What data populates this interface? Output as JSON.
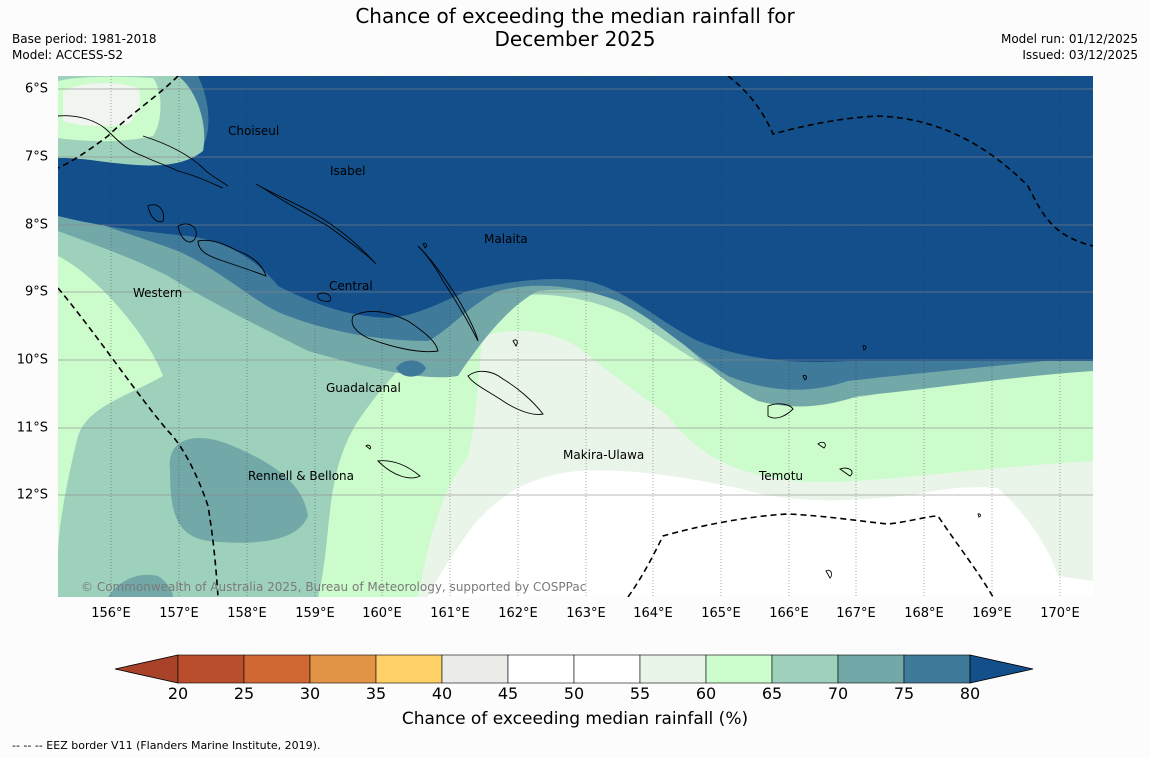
{
  "header": {
    "title_line1": "Chance of exceeding the median rainfall for",
    "title_line2": "December 2025",
    "base_period": "Base period: 1981-2018",
    "model": "Model: ACCESS-S2",
    "model_run": "Model run: 01/12/2025",
    "issued": "Issued: 03/12/2025"
  },
  "map": {
    "x_ticks": [
      "156°E",
      "157°E",
      "158°E",
      "159°E",
      "160°E",
      "161°E",
      "162°E",
      "163°E",
      "164°E",
      "165°E",
      "166°E",
      "167°E",
      "168°E",
      "169°E",
      "170°E"
    ],
    "y_ticks": [
      "6°S",
      "7°S",
      "8°S",
      "9°S",
      "10°S",
      "11°S",
      "12°S"
    ],
    "province_labels": [
      "Choiseul",
      "Isabel",
      "Malaita",
      "Central",
      "Western",
      "Guadalcanal",
      "Makira-Ulawa",
      "Rennell & Bellona",
      "Temotu"
    ],
    "copyright": "© Commonwealth of Australia 2025, Bureau of Meteorology, supported by COSPPac"
  },
  "colorbar": {
    "ticks": [
      "20",
      "25",
      "30",
      "35",
      "40",
      "45",
      "50",
      "55",
      "60",
      "65",
      "70",
      "75",
      "80"
    ],
    "colors": [
      "#a8432a",
      "#b84e2c",
      "#d06833",
      "#e39447",
      "#fdd068",
      "#ebebe8",
      "#ffffff",
      "#ffffff",
      "#eaf5ea",
      "#ccfccc",
      "#9ed1bc",
      "#73a8a9",
      "#3f7a9b",
      "#134f8a"
    ],
    "title": "Chance of exceeding median rainfall (%)"
  },
  "footer": {
    "eez_note": "--  --  -- EEZ border V11 (Flanders Marine Institute, 2019)."
  }
}
